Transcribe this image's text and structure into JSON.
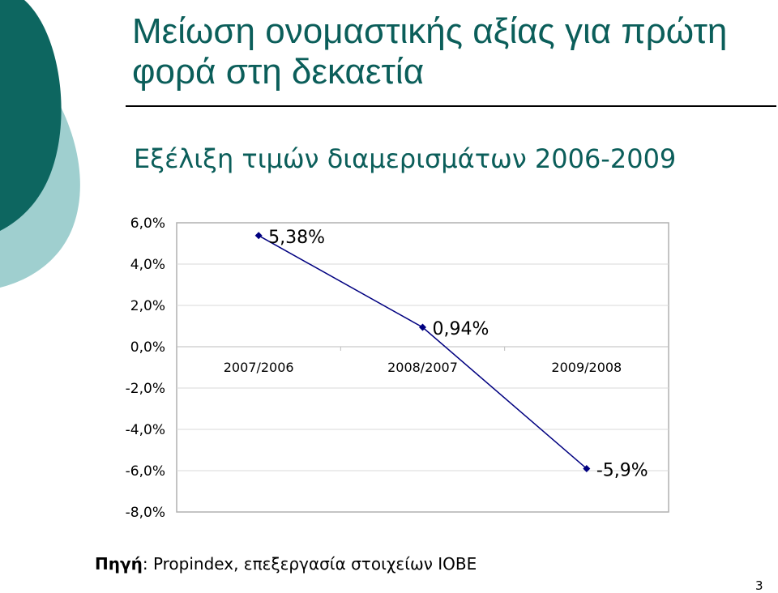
{
  "slide": {
    "title": "Μείωση ονομαστικής αξίας για πρώτη φορά στη δεκαετία",
    "subtitle": "Εξέλιξη τιμών διαμερισμάτων 2006-2009",
    "source_label": "Πηγή",
    "source_text": ": Propindex, επεξεργασία στοιχείων ΙΟΒΕ",
    "page_number": "3",
    "colors": {
      "title": "#0b5e5a",
      "decor_dark": "#0d6660",
      "decor_light": "#9fcfcf",
      "series": "#000080"
    }
  },
  "chart_data": {
    "type": "line",
    "title": "",
    "xlabel": "",
    "ylabel": "",
    "categories": [
      "2007/2006",
      "2008/2007",
      "2009/2008"
    ],
    "series": [
      {
        "values": [
          5.38,
          0.94,
          -5.9
        ]
      }
    ],
    "data_labels": [
      "5,38%",
      "0,94%",
      "-5,9%"
    ],
    "y_ticks": [
      "6,0%",
      "4,0%",
      "2,0%",
      "0,0%",
      "-2,0%",
      "-4,0%",
      "-6,0%",
      "-8,0%"
    ],
    "ylim": [
      -8,
      6
    ],
    "grid": true,
    "legend": "none"
  }
}
